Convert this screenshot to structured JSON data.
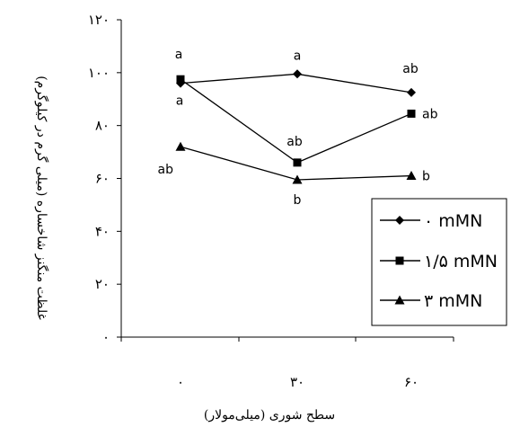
{
  "chart_data": {
    "type": "line",
    "title": "",
    "xlabel": "سطح شوری (میلی‌مولار)",
    "ylabel": "غلظت منگنز شاخساره (میلی گرم در کیلوگرم)",
    "ylim": [
      0,
      120
    ],
    "yticks": [
      0,
      20,
      40,
      60,
      80,
      100,
      120
    ],
    "ytick_labels": [
      "۰",
      "۲۰",
      "۴۰",
      "۶۰",
      "۸۰",
      "۱۰۰",
      "۱۲۰"
    ],
    "categories": [
      "۰",
      "۳۰",
      "۶۰"
    ],
    "grid": false,
    "legend_position": "right",
    "series": [
      {
        "name": "۰ mMN",
        "marker": "diamond",
        "values": [
          96,
          99.5,
          92.5
        ],
        "labels": [
          "a",
          "a",
          "ab"
        ]
      },
      {
        "name": "۱/۵ mMN",
        "marker": "square",
        "values": [
          97.5,
          66,
          84.5
        ],
        "labels": [
          "a",
          "ab",
          "ab"
        ]
      },
      {
        "name": "۳ mMN",
        "marker": "triangle",
        "values": [
          72,
          59.5,
          61
        ],
        "labels": [
          "ab",
          "b",
          "b"
        ]
      }
    ]
  }
}
